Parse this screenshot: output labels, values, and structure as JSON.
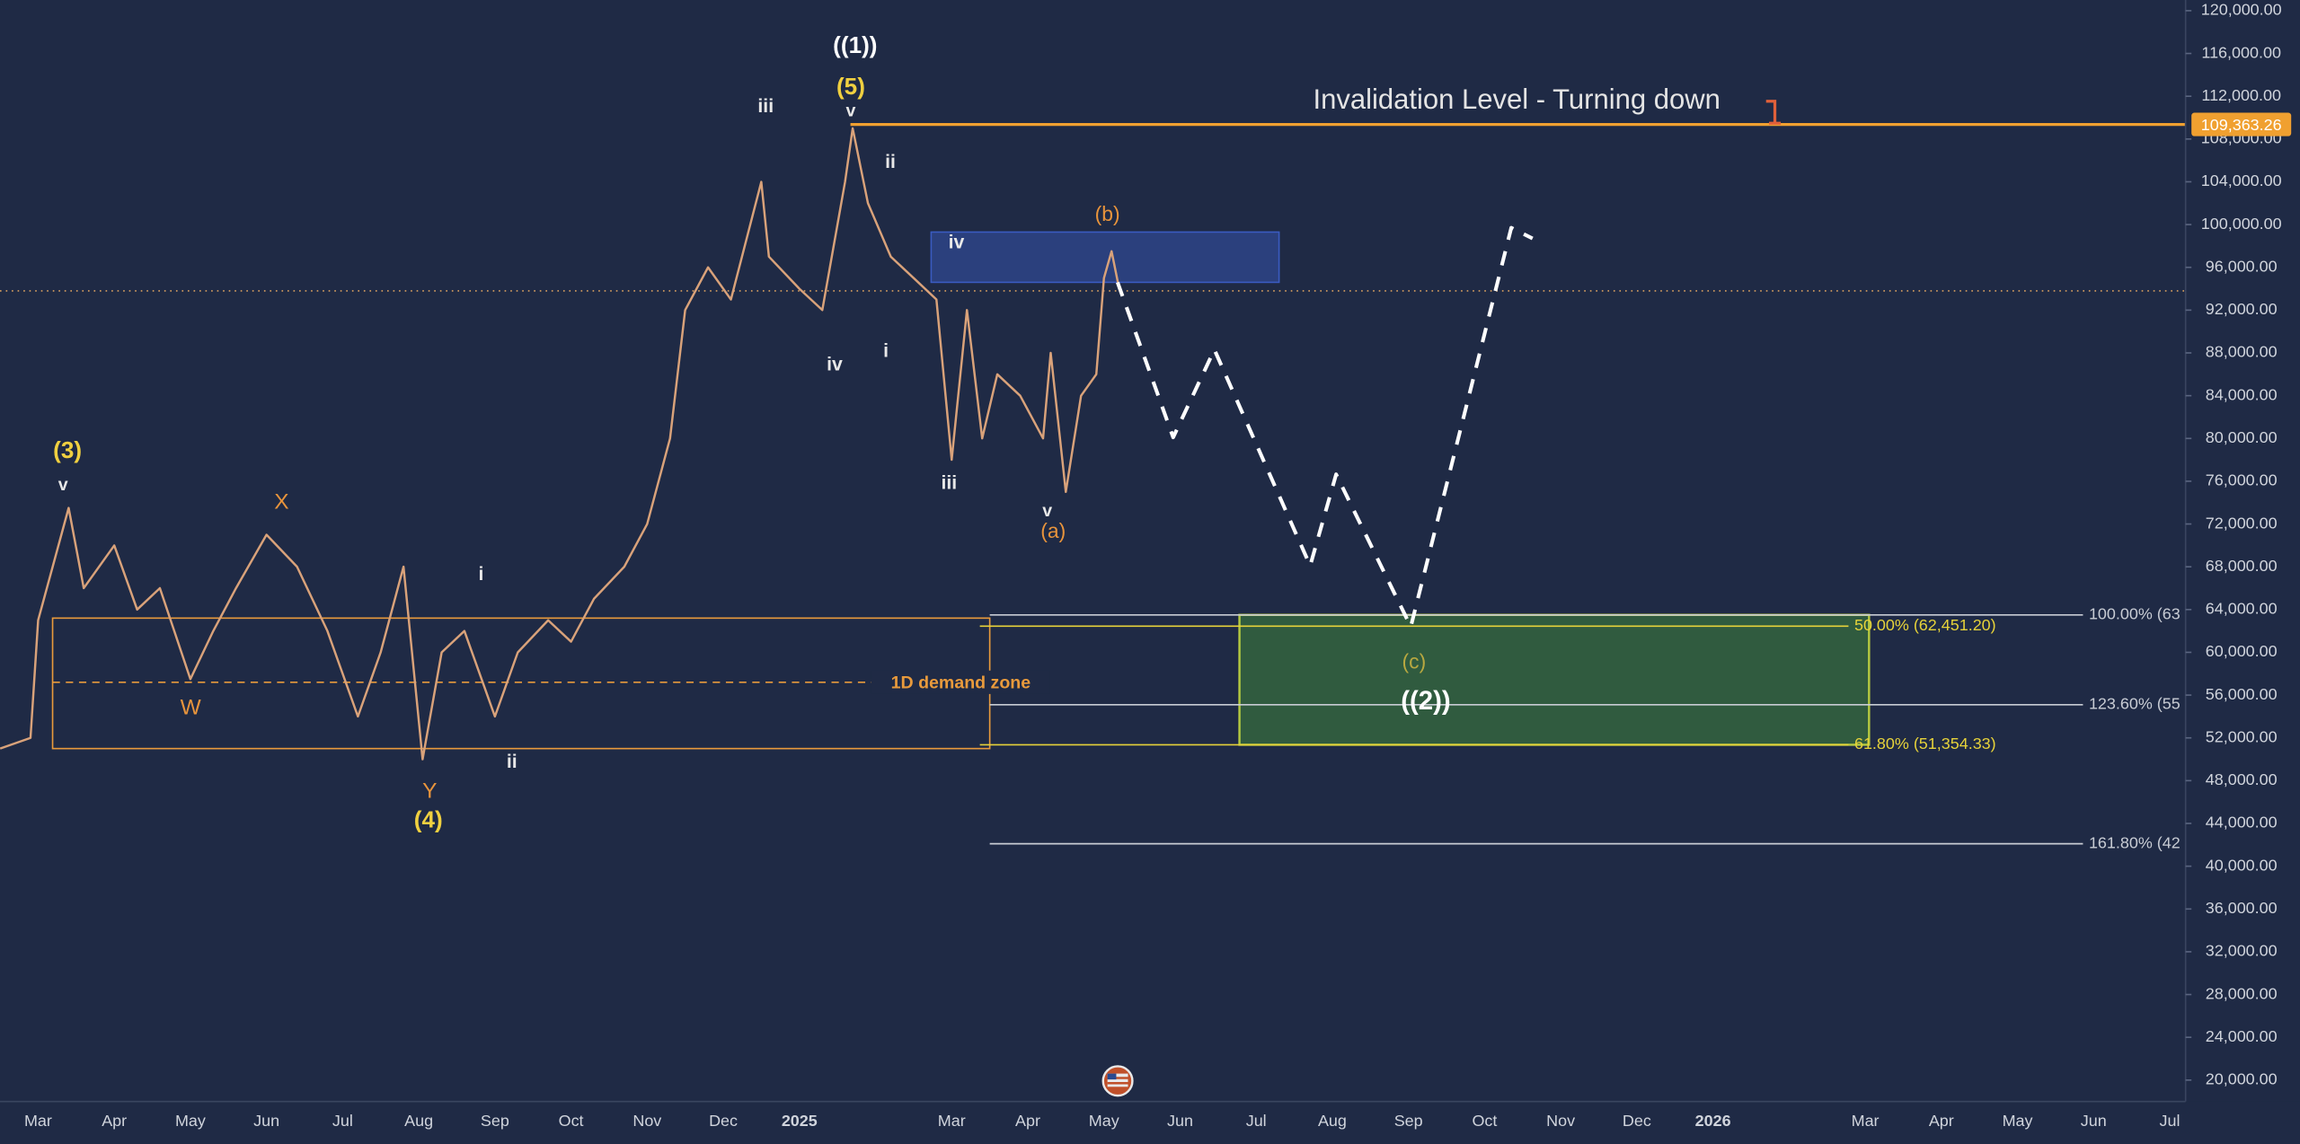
{
  "chart_data": {
    "type": "line",
    "categories": [
      "Mar",
      "Apr",
      "May",
      "Jun",
      "Jul",
      "Aug",
      "Sep",
      "Oct",
      "Nov",
      "Dec",
      "2025",
      null,
      "Mar",
      "Apr",
      "May",
      "Jun",
      "Jul",
      "Aug",
      "Sep",
      "Oct",
      "Nov",
      "Dec",
      "2026",
      null,
      "Mar",
      "Apr",
      "May",
      "Jun",
      "Jul"
    ],
    "ylim": [
      18000,
      121000
    ],
    "yticks": [
      {
        "value": 20000,
        "label": "20,000.00"
      },
      {
        "value": 24000,
        "label": "24,000.00"
      },
      {
        "value": 28000,
        "label": "28,000.00"
      },
      {
        "value": 32000,
        "label": "32,000.00"
      },
      {
        "value": 36000,
        "label": "36,000.00"
      },
      {
        "value": 40000,
        "label": "40,000.00"
      },
      {
        "value": 44000,
        "label": "44,000.00"
      },
      {
        "value": 48000,
        "label": "48,000.00"
      },
      {
        "value": 52000,
        "label": "52,000.00"
      },
      {
        "value": 56000,
        "label": "56,000.00"
      },
      {
        "value": 60000,
        "label": "60,000.00"
      },
      {
        "value": 64000,
        "label": "64,000.00"
      },
      {
        "value": 68000,
        "label": "68,000.00"
      },
      {
        "value": 72000,
        "label": "72,000.00"
      },
      {
        "value": 76000,
        "label": "76,000.00"
      },
      {
        "value": 80000,
        "label": "80,000.00"
      },
      {
        "value": 84000,
        "label": "84,000.00"
      },
      {
        "value": 88000,
        "label": "88,000.00"
      },
      {
        "value": 92000,
        "label": "92,000.00"
      },
      {
        "value": 96000,
        "label": "96,000.00"
      },
      {
        "value": 100000,
        "label": "100,000.00"
      },
      {
        "value": 104000,
        "label": "104,000.00"
      },
      {
        "value": 108000,
        "label": "108,000.00"
      },
      {
        "value": 112000,
        "label": "112,000.00"
      },
      {
        "value": 116000,
        "label": "116,000.00"
      },
      {
        "value": 120000,
        "label": "120,000.00"
      }
    ],
    "series": [
      {
        "color": "#d9a27a",
        "dashed": false,
        "x": [
          -0.5,
          -0.1,
          0,
          0.4,
          0.6,
          1.0,
          1.3,
          1.6,
          2.0,
          2.3,
          2.6,
          3.0,
          3.4,
          3.8,
          4.2,
          4.5,
          4.8,
          5.05,
          5.3,
          5.6,
          6.0,
          6.3,
          6.7,
          7.0,
          7.3,
          7.7,
          8.0,
          8.3,
          8.5,
          8.8,
          9.1,
          9.5,
          9.6,
          10.0,
          10.3,
          10.6,
          10.7,
          10.9,
          11.2,
          11.5,
          11.8,
          12.0,
          12.2,
          12.4,
          12.6,
          12.9,
          13.2,
          13.3,
          13.5,
          13.7,
          13.9,
          14.0,
          14.1,
          14.2
        ],
        "values": [
          51000,
          52000,
          63000,
          73500,
          66000,
          70000,
          64000,
          66000,
          57500,
          62000,
          66000,
          71000,
          68000,
          62000,
          54000,
          60000,
          68000,
          50000,
          60000,
          62000,
          54000,
          60000,
          63000,
          61000,
          65000,
          68000,
          72000,
          80000,
          92000,
          96000,
          93000,
          104000,
          97000,
          94000,
          92000,
          104000,
          109000,
          102000,
          97000,
          95000,
          93000,
          78000,
          92000,
          80000,
          86000,
          84000,
          80000,
          88000,
          75000,
          84000,
          86000,
          95000,
          97500,
          94000
        ]
      },
      {
        "color": "#ffffff",
        "dashed": true,
        "x": [
          14.18,
          14.91,
          15.45,
          16.71,
          17.05,
          18.03,
          19.35,
          19.63
        ],
        "values": [
          94600,
          80100,
          88300,
          68100,
          76650,
          62400,
          99700,
          98700
        ]
      }
    ],
    "current_price": 93800,
    "invalidation": {
      "label": "Invalidation Level - Turning down",
      "value": 109363.26,
      "value_label": "109,363.26",
      "color": "#f0a030",
      "xrange": [
        10.67,
        28.2
      ]
    },
    "zones": [
      {
        "label": "1D demand zone",
        "top": 63200,
        "bottom": 51000,
        "mid": 57200,
        "color": "#e89a3c",
        "xrange": [
          0.19,
          12.5
        ]
      },
      {
        "top": 99300,
        "bottom": 94600,
        "color": "#3a5bc0",
        "xrange": [
          11.73,
          16.3
        ]
      },
      {
        "top": 63500,
        "bottom": 51354.33,
        "color": "#b5c940",
        "xrange": [
          15.78,
          24.05
        ]
      }
    ],
    "fib_levels": [
      {
        "label": "100.00% (63",
        "value": 63500,
        "color": "#c8ccd4",
        "xrange": [
          12.5,
          26.86
        ]
      },
      {
        "label": "50.00% (62,451.20)",
        "value": 62451.2,
        "color": "#e6d23a",
        "xrange": [
          12.37,
          23.78
        ]
      },
      {
        "label": "123.60% (55",
        "value": 55100,
        "color": "#c8ccd4",
        "xrange": [
          12.5,
          26.86
        ]
      },
      {
        "label": "61.80% (51,354.33)",
        "value": 51354.33,
        "color": "#e6d23a",
        "xrange": [
          12.37,
          23.78
        ]
      },
      {
        "label": "161.80% (42",
        "value": 42100,
        "color": "#c8ccd4",
        "xrange": [
          12.5,
          26.86
        ]
      }
    ],
    "wave_labels": [
      {
        "text": "((1))",
        "color": "#ffffff"
      },
      {
        "text": "(5)",
        "color": "#f0d040"
      },
      {
        "text": "v",
        "color": "#e8e8e8"
      },
      {
        "text": "iii",
        "color": "#e8e8e8"
      },
      {
        "text": "ii",
        "color": "#e8e8e8"
      },
      {
        "text": "iv",
        "color": "#e8e8e8"
      },
      {
        "text": "i",
        "color": "#e8e8e8"
      },
      {
        "text": "iv",
        "color": "#e8e8e8"
      },
      {
        "text": "iii",
        "color": "#e8e8e8"
      },
      {
        "text": "(b)",
        "color": "#e8943c"
      },
      {
        "text": "v",
        "color": "#e8e8e8"
      },
      {
        "text": "(a)",
        "color": "#e8943c"
      },
      {
        "text": "(3)",
        "color": "#f0d040"
      },
      {
        "text": "v",
        "color": "#e8e8e8"
      },
      {
        "text": "X",
        "color": "#e8943c"
      },
      {
        "text": "W",
        "color": "#e8943c"
      },
      {
        "text": "i",
        "color": "#e8e8e8"
      },
      {
        "text": "ii",
        "color": "#e8e8e8"
      },
      {
        "text": "Y",
        "color": "#e8943c"
      },
      {
        "text": "(4)",
        "color": "#f0d040"
      },
      {
        "text": "(c)",
        "color": "#b8a840"
      },
      {
        "text": "((2))",
        "color": "#ffffff"
      }
    ]
  }
}
